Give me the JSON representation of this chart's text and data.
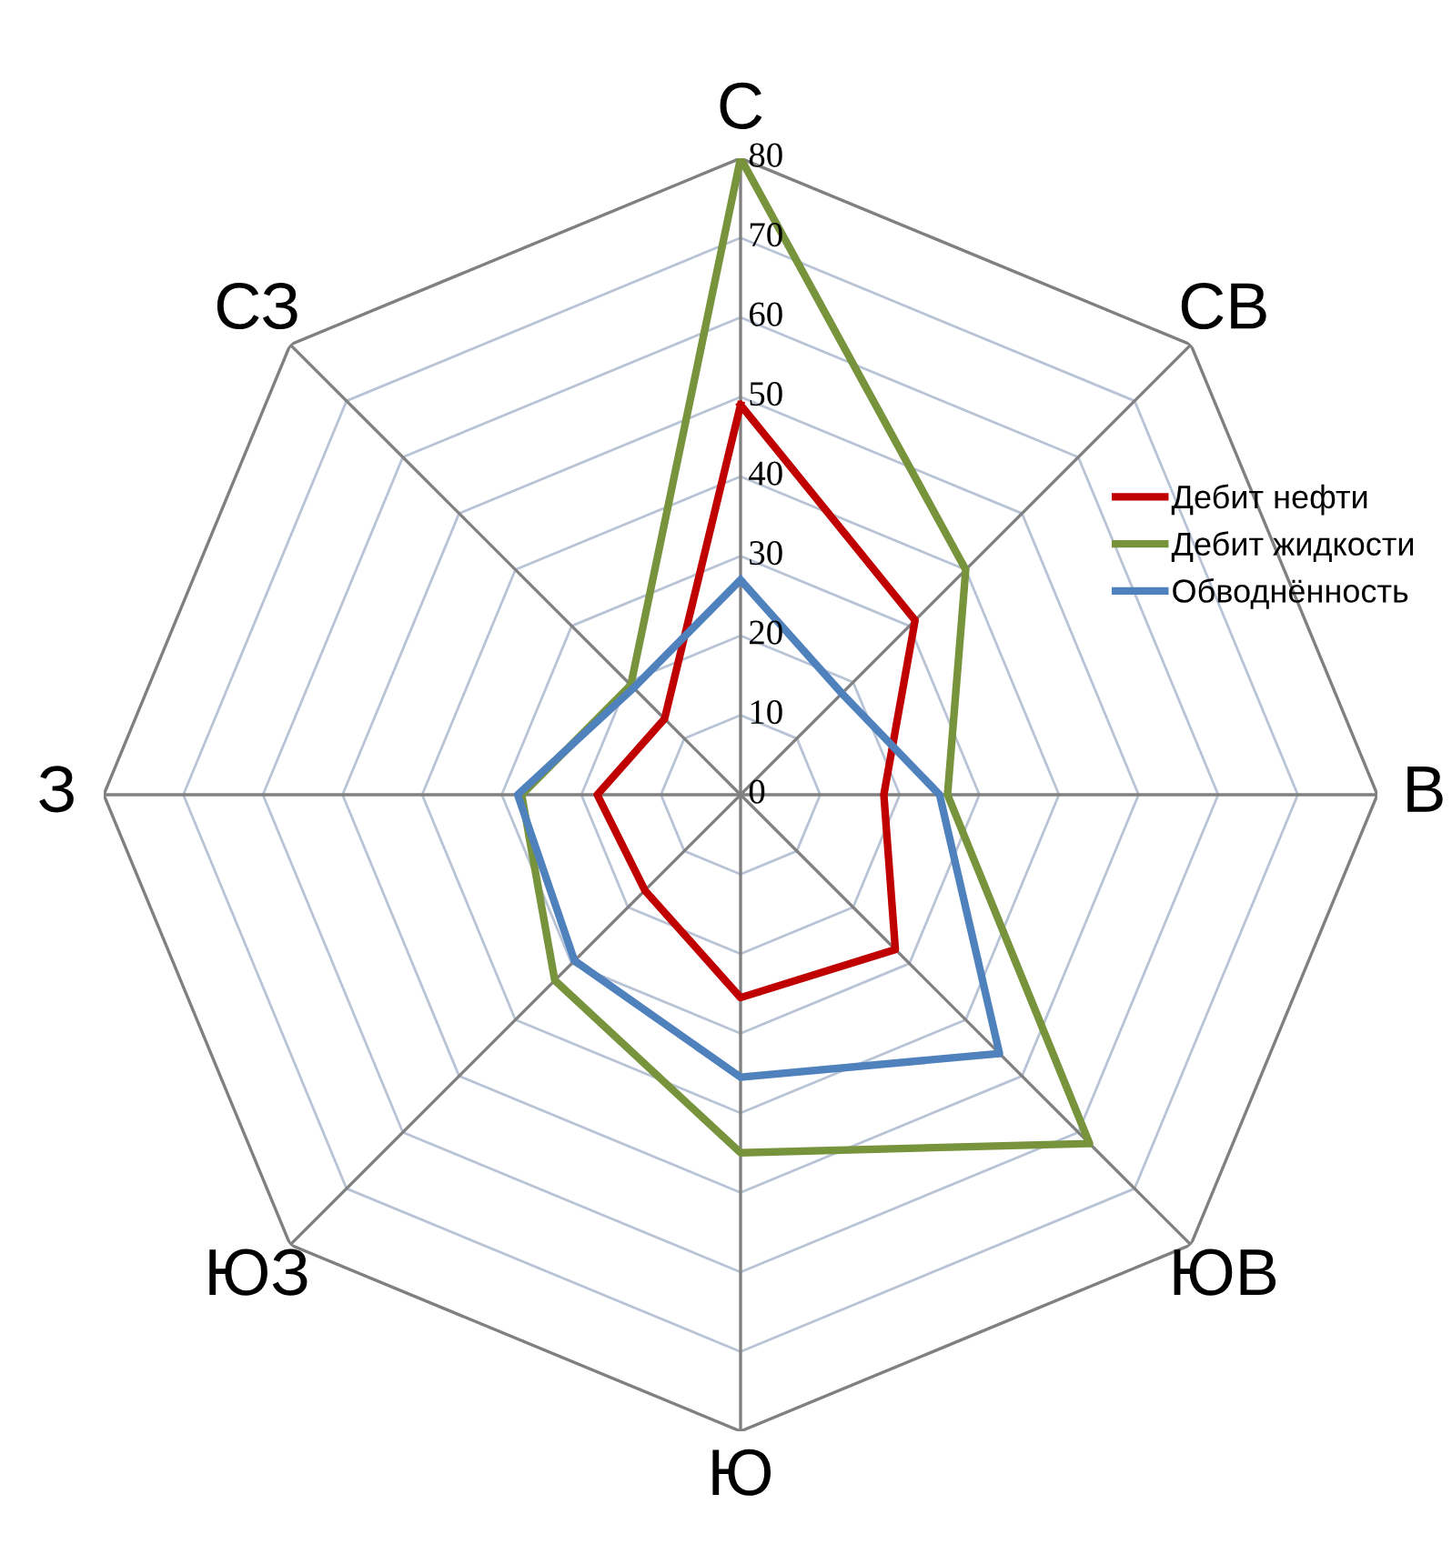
{
  "chart_data": {
    "type": "radar",
    "categories": [
      "С",
      "СВ",
      "В",
      "ЮВ",
      "Ю",
      "ЮЗ",
      "З",
      "СЗ"
    ],
    "series": [
      {
        "name": "Дебит нефти",
        "color": "#c00000",
        "values": [
          49,
          31,
          18,
          27.5,
          25.5,
          17,
          18,
          13.5
        ]
      },
      {
        "name": "Дебит жидкости",
        "color": "#77933c",
        "values": [
          80,
          40,
          26,
          62,
          45,
          33,
          27.5,
          19.5
        ]
      },
      {
        "name": "Обводнённость",
        "color": "#4f81bd",
        "values": [
          27,
          18,
          25,
          46,
          35.5,
          29.5,
          28,
          19
        ]
      }
    ],
    "ylim": [
      0,
      80
    ],
    "yticks": [
      0,
      10,
      20,
      30,
      40,
      50,
      60,
      70,
      80
    ],
    "grid": true,
    "legend": "right",
    "marker": "none",
    "line_style": "solid"
  }
}
